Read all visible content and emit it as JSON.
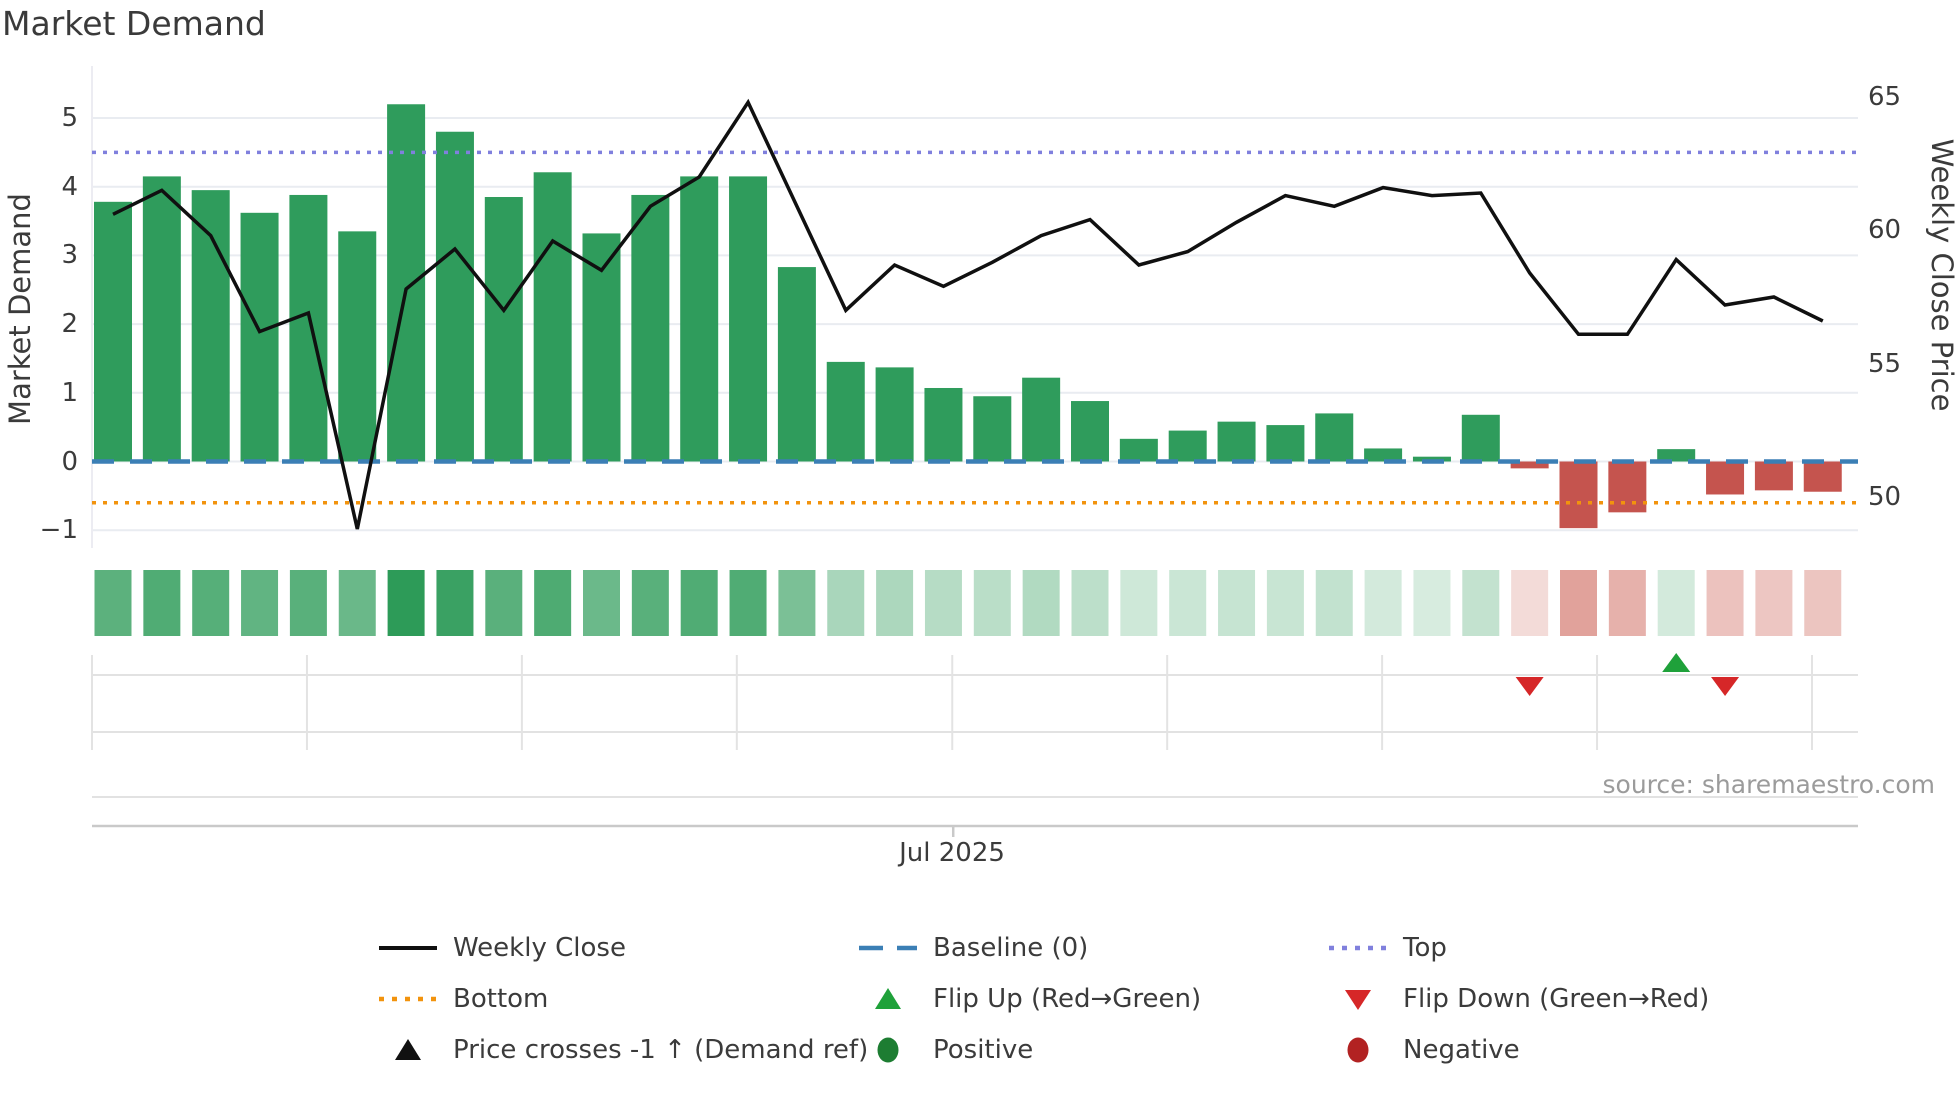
{
  "title": "Market Demand",
  "source": "source: sharemaestro.com",
  "axes": {
    "left_title": "Market Demand",
    "right_title": "Weekly Close Price",
    "left_ticks": [
      "5",
      "4",
      "3",
      "2",
      "1",
      "0",
      "−1"
    ],
    "left_tick_values": [
      5,
      4,
      3,
      2,
      1,
      0,
      -1
    ],
    "right_ticks": [
      "65",
      "60",
      "55",
      "50"
    ],
    "right_tick_values": [
      65,
      60,
      55,
      50
    ],
    "x_tick_label": "Jul 2025"
  },
  "chart_data": {
    "type": "combo",
    "n_weeks": 36,
    "series": [
      {
        "name": "Market Demand",
        "type": "bar",
        "axis": "left",
        "values": [
          3.78,
          4.15,
          3.95,
          3.62,
          3.88,
          3.35,
          5.2,
          4.8,
          3.85,
          4.21,
          3.32,
          3.88,
          4.15,
          4.15,
          2.83,
          1.45,
          1.37,
          1.07,
          0.95,
          1.22,
          0.88,
          0.33,
          0.45,
          0.58,
          0.53,
          0.7,
          0.19,
          0.07,
          0.68,
          -0.1,
          -0.97,
          -0.74,
          0.18,
          -0.48,
          -0.42,
          -0.44
        ]
      },
      {
        "name": "Weekly Close",
        "type": "line",
        "axis": "right",
        "values": [
          60.6,
          61.5,
          59.8,
          56.2,
          56.9,
          48.8,
          57.8,
          59.3,
          57.0,
          59.6,
          58.5,
          60.9,
          62.0,
          64.8,
          60.9,
          57.0,
          58.7,
          57.9,
          58.8,
          59.8,
          60.4,
          58.7,
          59.2,
          60.3,
          61.3,
          60.9,
          61.6,
          61.3,
          61.4,
          58.4,
          56.1,
          56.1,
          58.9,
          57.2,
          57.5,
          56.6
        ]
      }
    ],
    "reference_lines": [
      {
        "name": "Top",
        "axis": "left",
        "value": 4.5,
        "style": "dot",
        "color": "#8080dd"
      },
      {
        "name": "Baseline (0)",
        "axis": "left",
        "value": 0,
        "style": "dash",
        "color": "#3b7fb5"
      },
      {
        "name": "Bottom",
        "axis": "left",
        "value": -0.6,
        "style": "dot",
        "color": "#f2930d"
      }
    ],
    "flip_markers": {
      "up_weeks": [
        33
      ],
      "down_weeks": [
        30,
        34
      ]
    },
    "heatmap": {
      "note": "weekly demand strip, same values as Market Demand bars"
    },
    "ylim_left": [
      -1.26,
      5.76
    ],
    "ylim_right": [
      48.1,
      66.2
    ],
    "x_axis": {
      "labeled_tick": {
        "label": "Jul 2025",
        "week_position": 18.2
      },
      "month_gridline_week_positions": [
        0.57,
        4.97,
        9.37,
        13.77,
        18.18,
        22.58,
        26.98,
        31.38,
        35.78
      ]
    },
    "grid": "horizontal-light"
  },
  "colors": {
    "bar_positive": "#2f9c5c",
    "bar_negative": "#c5544e",
    "price_line": "#101010",
    "baseline": "#3b7fb5",
    "top_line": "#8080dd",
    "bottom_line": "#f2930d",
    "flip_up": "#1fa13a",
    "flip_down": "#d62728",
    "positive_dot": "#1d7d32",
    "negative_dot": "#b22222",
    "gridline": "#e9ecf1",
    "heat_green_base": "#2d9b58",
    "heat_red_base": "#c0392b"
  },
  "legend": {
    "items": [
      {
        "label": "Weekly Close",
        "marker": "line",
        "color": "#101010",
        "col": 0,
        "row": 0
      },
      {
        "label": "Bottom",
        "marker": "dotted",
        "color": "#f2930d",
        "col": 0,
        "row": 1
      },
      {
        "label": "Price crosses -1 ↑ (Demand ref)",
        "marker": "triangle-up",
        "color": "#111111",
        "col": 0,
        "row": 2
      },
      {
        "label": "Baseline (0)",
        "marker": "dashed",
        "color": "#3b7fb5",
        "col": 1,
        "row": 0
      },
      {
        "label": "Flip Up (Red→Green)",
        "marker": "triangle-up",
        "color": "#1fa13a",
        "col": 1,
        "row": 1
      },
      {
        "label": "Positive",
        "marker": "circle",
        "color": "#1d7d32",
        "col": 1,
        "row": 2
      },
      {
        "label": "Top",
        "marker": "dotted",
        "color": "#8080dd",
        "col": 2,
        "row": 0
      },
      {
        "label": "Flip Down (Green→Red)",
        "marker": "triangle-down",
        "color": "#d62728",
        "col": 2,
        "row": 1
      },
      {
        "label": "Negative",
        "marker": "circle",
        "color": "#b22222",
        "col": 2,
        "row": 2
      }
    ]
  }
}
